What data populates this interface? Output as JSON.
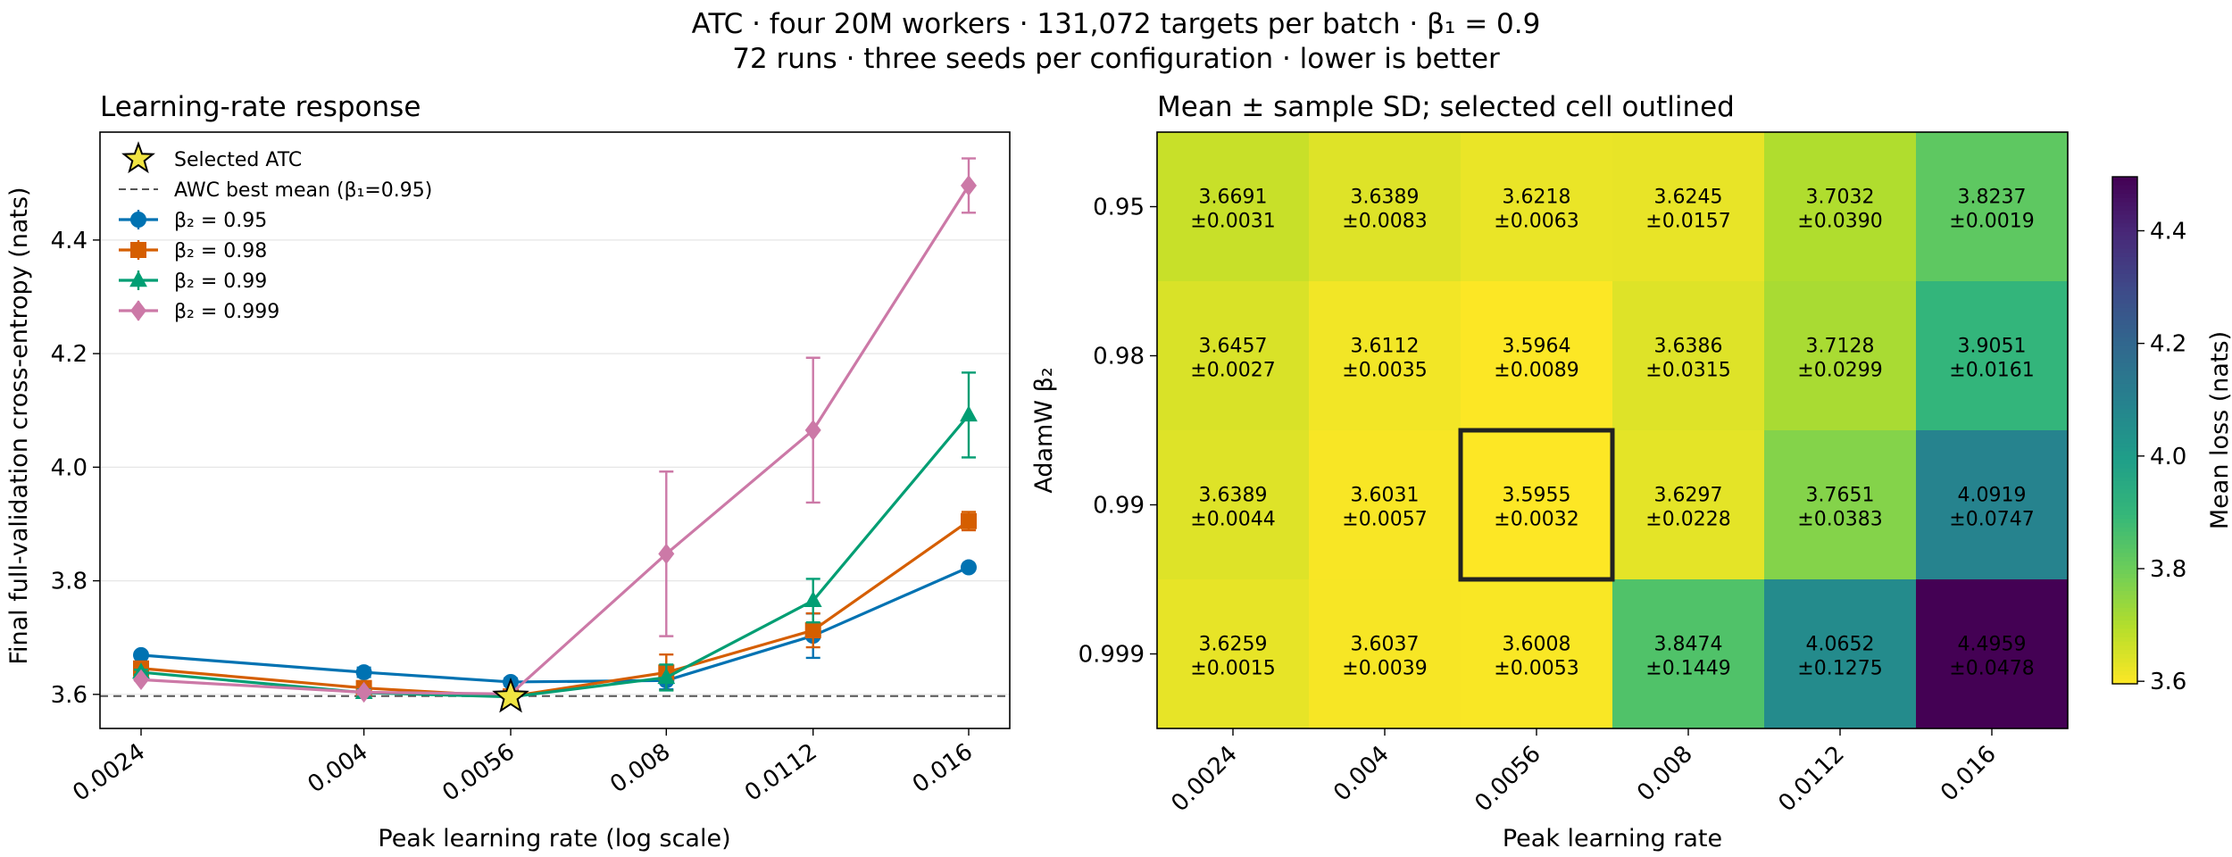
{
  "figure": {
    "title_line1": "ATC · four 20M workers · 131,072 targets per batch · β₁ = 0.9",
    "title_line2": "72 runs · three seeds per configuration · lower is better"
  },
  "colors": {
    "beta2_0_95": "#0072b2",
    "beta2_0_98": "#d55e00",
    "beta2_0_99": "#009e73",
    "beta2_0_999": "#cc79a7",
    "star_fill": "#f0e442",
    "reference_line": "#555555",
    "highlight_box": "#222222"
  },
  "chart_data": [
    {
      "type": "line",
      "title": "Learning-rate response",
      "xlabel": "Peak learning rate (log scale)",
      "ylabel": "Final full-validation cross-entropy (nats)",
      "x_scale": "log",
      "x": [
        0.0024,
        0.004,
        0.0056,
        0.008,
        0.0112,
        0.016
      ],
      "x_tick_labels": [
        "0.0024",
        "0.004",
        "0.0056",
        "0.008",
        "0.0112",
        "0.016"
      ],
      "ylim": [
        3.54,
        4.59
      ],
      "y_ticks": [
        3.6,
        3.8,
        4.0,
        4.2,
        4.4
      ],
      "y_tick_labels": [
        "3.6",
        "3.8",
        "4.0",
        "4.2",
        "4.4"
      ],
      "grid": "horizontal",
      "legend_position": "upper-left",
      "series": [
        {
          "name": "β₂ = 0.95",
          "marker": "circle",
          "values": [
            3.6691,
            3.6389,
            3.6218,
            3.6245,
            3.7032,
            3.8237
          ],
          "sd": [
            0.0031,
            0.0083,
            0.0063,
            0.0157,
            0.039,
            0.0019
          ]
        },
        {
          "name": "β₂ = 0.98",
          "marker": "square",
          "values": [
            3.6457,
            3.6112,
            3.5964,
            3.6386,
            3.7128,
            3.9051
          ],
          "sd": [
            0.0027,
            0.0035,
            0.0089,
            0.0315,
            0.0299,
            0.0161
          ]
        },
        {
          "name": "β₂ = 0.99",
          "marker": "triangle",
          "values": [
            3.6389,
            3.6031,
            3.5955,
            3.6297,
            3.7651,
            4.0919
          ],
          "sd": [
            0.0044,
            0.0057,
            0.0032,
            0.0228,
            0.0383,
            0.0747
          ]
        },
        {
          "name": "β₂ = 0.999",
          "marker": "diamond",
          "values": [
            3.6259,
            3.6037,
            3.6008,
            3.8474,
            4.0652,
            4.4959
          ],
          "sd": [
            0.0015,
            0.0039,
            0.0053,
            0.1449,
            0.1275,
            0.0478
          ]
        }
      ],
      "selected_point": {
        "label": "Selected ATC",
        "x": 0.0056,
        "y": 3.5955
      },
      "reference_line": {
        "label": "AWC best mean (β₁=0.95)",
        "y": 3.597
      }
    },
    {
      "type": "heatmap",
      "title": "Mean ± sample SD; selected cell outlined",
      "xlabel": "Peak learning rate",
      "ylabel": "AdamW β₂",
      "x_tick_labels": [
        "0.0024",
        "0.004",
        "0.0056",
        "0.008",
        "0.0112",
        "0.016"
      ],
      "y_tick_labels": [
        "0.95",
        "0.98",
        "0.99",
        "0.999"
      ],
      "means": [
        [
          3.6691,
          3.6389,
          3.6218,
          3.6245,
          3.7032,
          3.8237
        ],
        [
          3.6457,
          3.6112,
          3.5964,
          3.6386,
          3.7128,
          3.9051
        ],
        [
          3.6389,
          3.6031,
          3.5955,
          3.6297,
          3.7651,
          4.0919
        ],
        [
          3.6259,
          3.6037,
          3.6008,
          3.8474,
          4.0652,
          4.4959
        ]
      ],
      "mean_labels": [
        [
          "3.6691",
          "3.6389",
          "3.6218",
          "3.6245",
          "3.7032",
          "3.8237"
        ],
        [
          "3.6457",
          "3.6112",
          "3.5964",
          "3.6386",
          "3.7128",
          "3.9051"
        ],
        [
          "3.6389",
          "3.6031",
          "3.5955",
          "3.6297",
          "3.7651",
          "4.0919"
        ],
        [
          "3.6259",
          "3.6037",
          "3.6008",
          "3.8474",
          "4.0652",
          "4.4959"
        ]
      ],
      "sd_labels": [
        [
          "±0.0031",
          "±0.0083",
          "±0.0063",
          "±0.0157",
          "±0.0390",
          "±0.0019"
        ],
        [
          "±0.0027",
          "±0.0035",
          "±0.0089",
          "±0.0315",
          "±0.0299",
          "±0.0161"
        ],
        [
          "±0.0044",
          "±0.0057",
          "±0.0032",
          "±0.0228",
          "±0.0383",
          "±0.0747"
        ],
        [
          "±0.0015",
          "±0.0039",
          "±0.0053",
          "±0.1449",
          "±0.1275",
          "±0.0478"
        ]
      ],
      "selected_cell": {
        "row": 2,
        "col": 2
      },
      "colormap": "viridis_r",
      "colorbar": {
        "label": "Mean loss (nats)",
        "range": [
          3.5955,
          4.4959
        ],
        "ticks": [
          3.6,
          3.8,
          4.0,
          4.2,
          4.4
        ],
        "tick_labels": [
          "3.6",
          "3.8",
          "4.0",
          "4.2",
          "4.4"
        ]
      }
    }
  ]
}
